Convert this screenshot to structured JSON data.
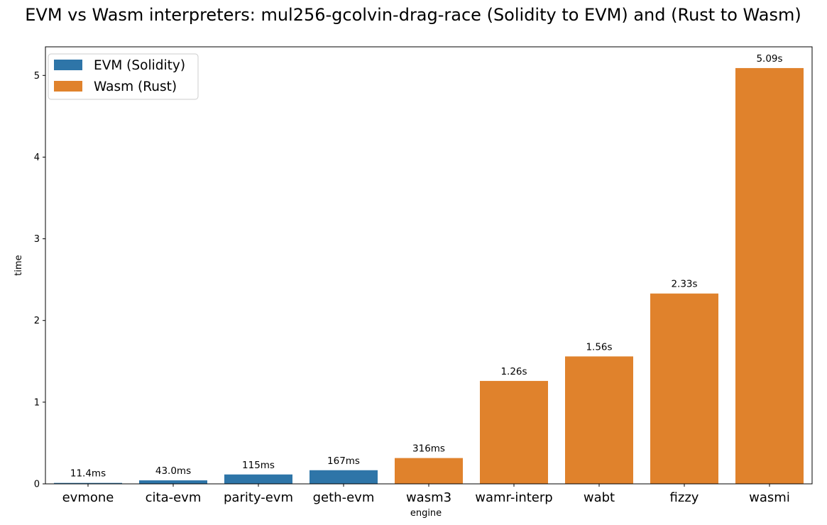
{
  "chart_data": {
    "type": "bar",
    "title": "EVM vs Wasm interpreters: mul256-gcolvin-drag-race (Solidity to EVM) and (Rust to Wasm)",
    "xlabel": "engine",
    "ylabel": "time",
    "ylim": [
      0,
      5.35
    ],
    "yticks": [
      "0",
      "1",
      "2",
      "3",
      "4",
      "5"
    ],
    "grid": false,
    "legend_position": "top-left",
    "categories": [
      "evmone",
      "cita-evm",
      "parity-evm",
      "geth-evm",
      "wasm3",
      "wamr-interp",
      "wabt",
      "fizzy",
      "wasmi"
    ],
    "values": [
      0.0114,
      0.043,
      0.115,
      0.167,
      0.316,
      1.26,
      1.56,
      2.33,
      5.09
    ],
    "data_labels": [
      "11.4ms",
      "43.0ms",
      "115ms",
      "167ms",
      "316ms",
      "1.26s",
      "1.56s",
      "2.33s",
      "5.09s"
    ],
    "bar_series": [
      0,
      0,
      0,
      0,
      1,
      1,
      1,
      1,
      1
    ],
    "series": [
      {
        "name": "EVM (Solidity)",
        "color": "#2e75a8"
      },
      {
        "name": "Wasm (Rust)",
        "color": "#e0822c"
      }
    ]
  }
}
